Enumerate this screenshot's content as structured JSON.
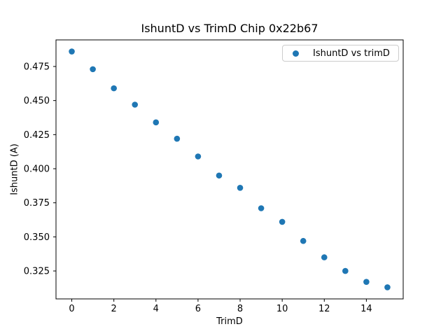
{
  "figure_title": "IshuntD vs TrimD Chip 0x22b67",
  "chart_data": {
    "type": "scatter",
    "title": "IshuntD vs TrimD Chip 0x22b67",
    "xlabel": "TrimD",
    "ylabel": "IshuntD (A)",
    "legend": [
      "IshuntD vs trimD"
    ],
    "legend_position": "upper right",
    "grid": false,
    "marker_color": "#1f77b4",
    "x": [
      0,
      1,
      2,
      3,
      4,
      5,
      6,
      7,
      8,
      9,
      10,
      11,
      12,
      13,
      14,
      15
    ],
    "y": [
      0.486,
      0.473,
      0.459,
      0.447,
      0.434,
      0.422,
      0.409,
      0.395,
      0.386,
      0.371,
      0.361,
      0.347,
      0.335,
      0.325,
      0.317,
      0.313
    ],
    "xlim": [
      -0.75,
      15.75
    ],
    "ylim": [
      0.3045,
      0.4945
    ],
    "xticks": [
      0,
      2,
      4,
      6,
      8,
      10,
      12,
      14
    ],
    "xtick_labels": [
      "0",
      "2",
      "4",
      "6",
      "8",
      "10",
      "12",
      "14"
    ],
    "yticks": [
      0.325,
      0.35,
      0.375,
      0.4,
      0.425,
      0.45,
      0.475
    ],
    "ytick_labels": [
      "0.325",
      "0.350",
      "0.375",
      "0.400",
      "0.425",
      "0.450",
      "0.475"
    ]
  }
}
